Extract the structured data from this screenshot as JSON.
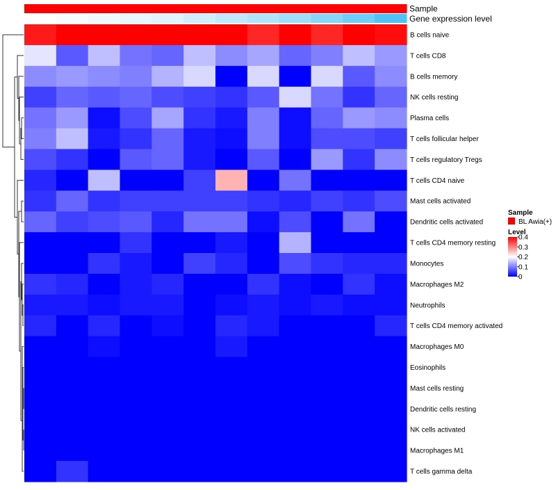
{
  "chart_data": {
    "type": "heatmap",
    "annotations": [
      {
        "name": "Sample",
        "kind": "categorical"
      },
      {
        "name": "Gene expression level",
        "kind": "gradient"
      }
    ],
    "rows": [
      "B cells naive",
      "T cells CD8",
      "B cells memory",
      "NK cells resting",
      "Plasma cells",
      "T cells follicular helper",
      "T cells regulatory  Tregs",
      "T cells CD4 naive",
      "Mast cells activated",
      "Dendritic cells activated",
      "T cells CD4 memory resting",
      "Monocytes",
      "Macrophages M2",
      "Neutrophils",
      "T cells CD4 memory activated",
      "Macrophages M0",
      "Eosinophils",
      "Mast cells resting",
      "Dendritic cells resting",
      "NK cells activated",
      "Macrophages M1",
      "T cells gamma delta"
    ],
    "n_samples": 12,
    "values": [
      [
        0.38,
        0.42,
        0.47,
        0.47,
        0.43,
        0.43,
        0.45,
        0.37,
        0.48,
        0.37,
        0.45,
        0.39
      ],
      [
        0.18,
        0.07,
        0.15,
        0.09,
        0.08,
        0.15,
        0.11,
        0.13,
        0.08,
        0.1,
        0.15,
        0.12
      ],
      [
        0.11,
        0.12,
        0.11,
        0.1,
        0.14,
        0.17,
        0.0,
        0.17,
        0.0,
        0.17,
        0.07,
        0.11
      ],
      [
        0.05,
        0.08,
        0.07,
        0.08,
        0.06,
        0.05,
        0.04,
        0.07,
        0.17,
        0.09,
        0.04,
        0.08
      ],
      [
        0.09,
        0.12,
        0.01,
        0.06,
        0.13,
        0.04,
        0.02,
        0.1,
        0.01,
        0.08,
        0.12,
        0.11
      ],
      [
        0.1,
        0.15,
        0.02,
        0.04,
        0.08,
        0.02,
        0.01,
        0.1,
        0.01,
        0.06,
        0.06,
        0.05
      ],
      [
        0.06,
        0.04,
        0.0,
        0.07,
        0.08,
        0.02,
        0.0,
        0.07,
        0.0,
        0.12,
        0.04,
        0.11
      ],
      [
        0.03,
        0.0,
        0.15,
        0.0,
        0.0,
        0.05,
        0.26,
        0.0,
        0.09,
        0.0,
        0.0,
        0.0
      ],
      [
        0.04,
        0.08,
        0.04,
        0.05,
        0.05,
        0.05,
        0.05,
        0.04,
        0.03,
        0.05,
        0.04,
        0.06
      ],
      [
        0.08,
        0.05,
        0.06,
        0.07,
        0.03,
        0.09,
        0.09,
        0.01,
        0.06,
        0.0,
        0.09,
        0.0
      ],
      [
        0.0,
        0.0,
        0.0,
        0.04,
        0.0,
        0.0,
        0.02,
        0.0,
        0.14,
        0.0,
        0.0,
        0.0
      ],
      [
        0.0,
        0.0,
        0.04,
        0.02,
        0.0,
        0.05,
        0.03,
        0.0,
        0.06,
        0.04,
        0.03,
        0.03
      ],
      [
        0.04,
        0.03,
        0.0,
        0.02,
        0.03,
        0.0,
        0.0,
        0.04,
        0.01,
        0.0,
        0.04,
        0.01
      ],
      [
        0.02,
        0.02,
        0.01,
        0.02,
        0.02,
        0.0,
        0.01,
        0.02,
        0.01,
        0.02,
        0.01,
        0.01
      ],
      [
        0.03,
        0.0,
        0.03,
        0.0,
        0.01,
        0.0,
        0.03,
        0.02,
        0.0,
        0.0,
        0.0,
        0.03
      ],
      [
        0.0,
        0.0,
        0.01,
        0.0,
        0.0,
        0.0,
        0.02,
        0.0,
        0.0,
        0.0,
        0.0,
        0.0
      ],
      [
        0.0,
        0.0,
        0.0,
        0.0,
        0.0,
        0.0,
        0.0,
        0.0,
        0.0,
        0.0,
        0.0,
        0.0
      ],
      [
        0.0,
        0.0,
        0.0,
        0.0,
        0.0,
        0.0,
        0.0,
        0.0,
        0.0,
        0.0,
        0.0,
        0.0
      ],
      [
        0.0,
        0.0,
        0.0,
        0.0,
        0.0,
        0.0,
        0.0,
        0.0,
        0.0,
        0.0,
        0.0,
        0.0
      ],
      [
        0.0,
        0.0,
        0.0,
        0.0,
        0.0,
        0.0,
        0.0,
        0.0,
        0.0,
        0.0,
        0.0,
        0.0
      ],
      [
        0.0,
        0.0,
        0.0,
        0.0,
        0.0,
        0.0,
        0.0,
        0.0,
        0.0,
        0.0,
        0.0,
        0.0
      ],
      [
        0.0,
        0.04,
        0.0,
        0.0,
        0.0,
        0.0,
        0.0,
        0.0,
        0.0,
        0.0,
        0.0,
        0.0
      ]
    ],
    "gene_expression_level": [
      0.0,
      0.05,
      0.09,
      0.14,
      0.18,
      0.27,
      0.36,
      0.45,
      0.55,
      0.68,
      0.82,
      1.0
    ],
    "color_scale": {
      "min": 0,
      "mid": 0.2,
      "max": 0.4,
      "low": "#0000FF",
      "mid_color": "#FFFFFF",
      "high": "#FF0000"
    },
    "legend": {
      "sample_title": "Sample",
      "sample_entries": [
        {
          "label": "BL Awia(+)",
          "color": "#FF0000"
        }
      ],
      "level_title": "Level",
      "level_ticks": [
        "0",
        "0.1",
        "0.2",
        "0.3",
        "0.4"
      ],
      "level_tick_values": [
        0,
        0.1,
        0.2,
        0.3,
        0.4
      ]
    },
    "annotation_colors": {
      "sample": "#FF0000",
      "expression_low": "#FFFFFF",
      "expression_high": "#4FC3F7"
    },
    "dendrogram": "rows"
  }
}
